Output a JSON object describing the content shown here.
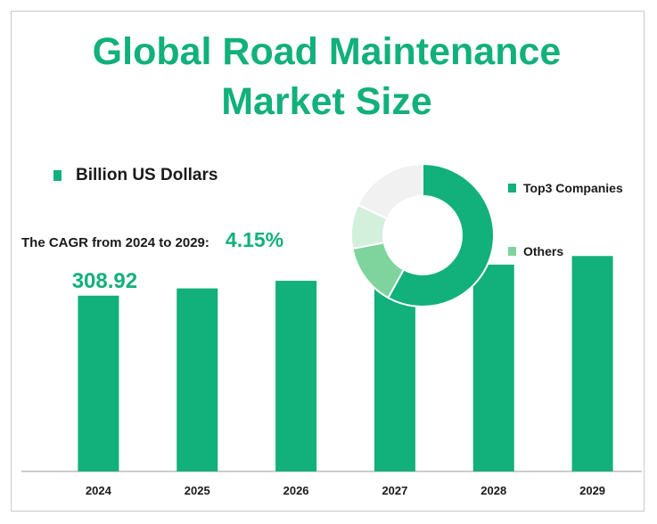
{
  "header": {
    "title_line1": "Global Road Maintenance",
    "title_line2": "Market Size"
  },
  "unit_legend": {
    "label": "Billion US Dollars",
    "color": "#12b07a"
  },
  "cagr": {
    "label": "The CAGR from 2024 to 2029:",
    "value": "4.15%"
  },
  "donut": {
    "legend": [
      {
        "label": "Top3 Companies",
        "color": "#12b07a"
      },
      {
        "label": "Others",
        "color": "#7fd49e"
      }
    ]
  },
  "chart_data": [
    {
      "type": "bar",
      "categories": [
        "2024",
        "2025",
        "2026",
        "2027",
        "2028",
        "2029"
      ],
      "values": [
        308.92,
        321.7,
        335.1,
        349.0,
        363.5,
        378.6
      ],
      "data_labels": [
        "308.92",
        "",
        "",
        "",
        "",
        ""
      ],
      "ylim": [
        0,
        390
      ],
      "bar_color": "#12b07a",
      "series_label": "Billion US Dollars"
    },
    {
      "type": "pie",
      "style": "donut",
      "slices": [
        {
          "label": "Top3 Companies",
          "value": 58,
          "color": "#12b07a"
        },
        {
          "label": "Others",
          "value": 14,
          "color": "#7fd49e"
        },
        {
          "label": "",
          "value": 10,
          "color": "#d3f0dd"
        },
        {
          "label": "",
          "value": 18,
          "color": "#f1f1f1"
        }
      ]
    }
  ]
}
